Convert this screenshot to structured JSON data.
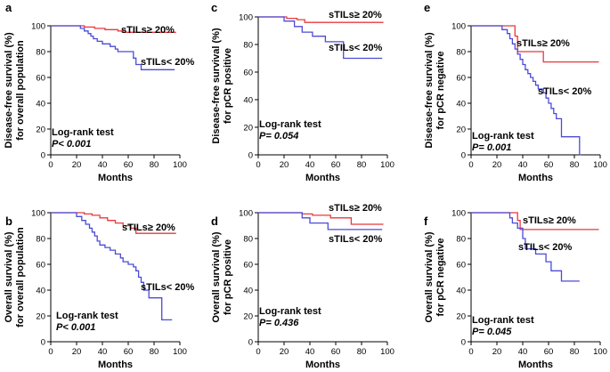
{
  "chart_data": [
    {
      "panel": "a",
      "type": "line",
      "ylabel": [
        "Disease-free survival (%)",
        "for overall population"
      ],
      "xlabel": "Months",
      "xlim": [
        0,
        100
      ],
      "ylim": [
        0,
        100
      ],
      "xticks": [
        0,
        20,
        40,
        60,
        80,
        100
      ],
      "yticks": [
        0,
        20,
        40,
        60,
        80,
        100
      ],
      "test_label": "Log-rank test",
      "p_value": "P< 0.001",
      "series": [
        {
          "name": "sTILs≥ 20%",
          "color": "#e8383d",
          "x": [
            0,
            22,
            26,
            34,
            42,
            52,
            56,
            97
          ],
          "y": [
            100,
            100,
            99,
            98,
            97,
            96,
            95,
            95
          ]
        },
        {
          "name": "sTILs< 20%",
          "color": "#4b4bd6",
          "x": [
            0,
            19,
            23,
            26,
            29,
            31,
            33,
            36,
            40,
            46,
            50,
            52,
            56,
            62,
            64,
            66,
            68,
            70,
            72,
            96
          ],
          "y": [
            100,
            100,
            98,
            96,
            94,
            92,
            90,
            88,
            86,
            84,
            82,
            80,
            80,
            80,
            75,
            70,
            70,
            66,
            66,
            66
          ]
        }
      ]
    },
    {
      "panel": "c",
      "type": "line",
      "ylabel": [
        "Disease-free survival (%)",
        "for pCR positive"
      ],
      "xlabel": "Months",
      "xlim": [
        0,
        100
      ],
      "ylim": [
        0,
        100
      ],
      "xticks": [
        0,
        20,
        40,
        60,
        80,
        100
      ],
      "yticks": [
        0,
        20,
        40,
        60,
        80,
        100
      ],
      "test_label": "Log-rank test",
      "p_value": "P= 0.054",
      "series": [
        {
          "name": "sTILs≥ 20%",
          "color": "#e8383d",
          "x": [
            0,
            18,
            22,
            30,
            36,
            97
          ],
          "y": [
            100,
            100,
            99,
            98,
            96,
            96
          ]
        },
        {
          "name": "sTILs< 20%",
          "color": "#4b4bd6",
          "x": [
            0,
            14,
            20,
            28,
            34,
            42,
            52,
            62,
            66,
            96
          ],
          "y": [
            100,
            100,
            97,
            93,
            89,
            86,
            82,
            82,
            70,
            70
          ]
        }
      ]
    },
    {
      "panel": "e",
      "type": "line",
      "ylabel": [
        "Disease-free survival (%)",
        "for pCR negative"
      ],
      "xlabel": "Months",
      "xlim": [
        0,
        100
      ],
      "ylim": [
        0,
        100
      ],
      "xticks": [
        0,
        20,
        40,
        60,
        80,
        100
      ],
      "yticks": [
        0,
        20,
        40,
        60,
        80,
        100
      ],
      "test_label": "Log-rank test",
      "p_value": "P= 0.001",
      "series": [
        {
          "name": "sTILs≥ 20%",
          "color": "#e8383d",
          "x": [
            0,
            30,
            34,
            36,
            54,
            56,
            99
          ],
          "y": [
            100,
            100,
            92,
            80,
            80,
            72,
            72
          ]
        },
        {
          "name": "sTILs< 20%",
          "color": "#4b4bd6",
          "x": [
            0,
            20,
            24,
            28,
            30,
            32,
            34,
            36,
            38,
            40,
            42,
            44,
            46,
            48,
            50,
            52,
            56,
            58,
            60,
            62,
            64,
            66,
            70,
            76,
            84,
            85
          ],
          "y": [
            100,
            100,
            97,
            94,
            90,
            86,
            82,
            78,
            74,
            70,
            66,
            63,
            60,
            57,
            54,
            51,
            48,
            44,
            40,
            36,
            32,
            28,
            14,
            14,
            0,
            0
          ]
        }
      ]
    },
    {
      "panel": "b",
      "type": "line",
      "ylabel": [
        "Overall survival (%)",
        "for overall population"
      ],
      "xlabel": "Months",
      "xlim": [
        0,
        100
      ],
      "ylim": [
        0,
        100
      ],
      "xticks": [
        0,
        20,
        40,
        60,
        80,
        100
      ],
      "yticks": [
        0,
        20,
        40,
        60,
        80,
        100
      ],
      "test_label": "Log-rank test",
      "p_value": "P< 0.001",
      "series": [
        {
          "name": "sTILs≥ 20%",
          "color": "#e8383d",
          "x": [
            0,
            20,
            26,
            32,
            38,
            44,
            50,
            56,
            62,
            66,
            97
          ],
          "y": [
            100,
            100,
            99,
            98,
            96,
            94,
            92,
            90,
            88,
            84,
            84
          ]
        },
        {
          "name": "sTILs< 20%",
          "color": "#4b4bd6",
          "x": [
            0,
            16,
            20,
            24,
            27,
            30,
            32,
            34,
            36,
            38,
            42,
            46,
            50,
            54,
            56,
            60,
            64,
            66,
            68,
            70,
            72,
            76,
            84,
            86,
            94
          ],
          "y": [
            100,
            100,
            97,
            94,
            91,
            88,
            85,
            82,
            78,
            75,
            73,
            71,
            68,
            65,
            62,
            60,
            58,
            55,
            50,
            46,
            40,
            34,
            34,
            17,
            17
          ]
        }
      ]
    },
    {
      "panel": "d",
      "type": "line",
      "ylabel": [
        "Overall survival (%)",
        "for pCR positive"
      ],
      "xlabel": "Months",
      "xlim": [
        0,
        100
      ],
      "ylim": [
        0,
        100
      ],
      "xticks": [
        0,
        20,
        40,
        60,
        80,
        100
      ],
      "yticks": [
        0,
        20,
        40,
        60,
        80,
        100
      ],
      "test_label": "Log-rank test",
      "p_value": "P= 0.436",
      "series": [
        {
          "name": "sTILs≥ 20%",
          "color": "#e8383d",
          "x": [
            0,
            26,
            34,
            42,
            56,
            72,
            97
          ],
          "y": [
            100,
            100,
            99,
            98,
            96,
            91,
            91
          ]
        },
        {
          "name": "sTILs< 20%",
          "color": "#4b4bd6",
          "x": [
            0,
            28,
            34,
            40,
            50,
            54,
            96
          ],
          "y": [
            100,
            100,
            96,
            92,
            92,
            87,
            87
          ]
        }
      ]
    },
    {
      "panel": "f",
      "type": "line",
      "ylabel": [
        "Overall survival (%)",
        "for pCR negative"
      ],
      "xlabel": "Months",
      "xlim": [
        0,
        100
      ],
      "ylim": [
        0,
        100
      ],
      "xticks": [
        0,
        20,
        40,
        60,
        80,
        100
      ],
      "yticks": [
        0,
        20,
        40,
        60,
        80,
        100
      ],
      "test_label": "Log-rank test",
      "p_value": "P= 0.045",
      "series": [
        {
          "name": "sTILs≥ 20%",
          "color": "#e8383d",
          "x": [
            0,
            34,
            36,
            38,
            99
          ],
          "y": [
            100,
            100,
            94,
            87,
            87
          ]
        },
        {
          "name": "sTILs< 20%",
          "color": "#4b4bd6",
          "x": [
            0,
            24,
            30,
            32,
            36,
            40,
            42,
            50,
            58,
            62,
            70,
            84
          ],
          "y": [
            100,
            100,
            96,
            92,
            88,
            80,
            72,
            68,
            62,
            55,
            47,
            47
          ]
        }
      ]
    }
  ]
}
